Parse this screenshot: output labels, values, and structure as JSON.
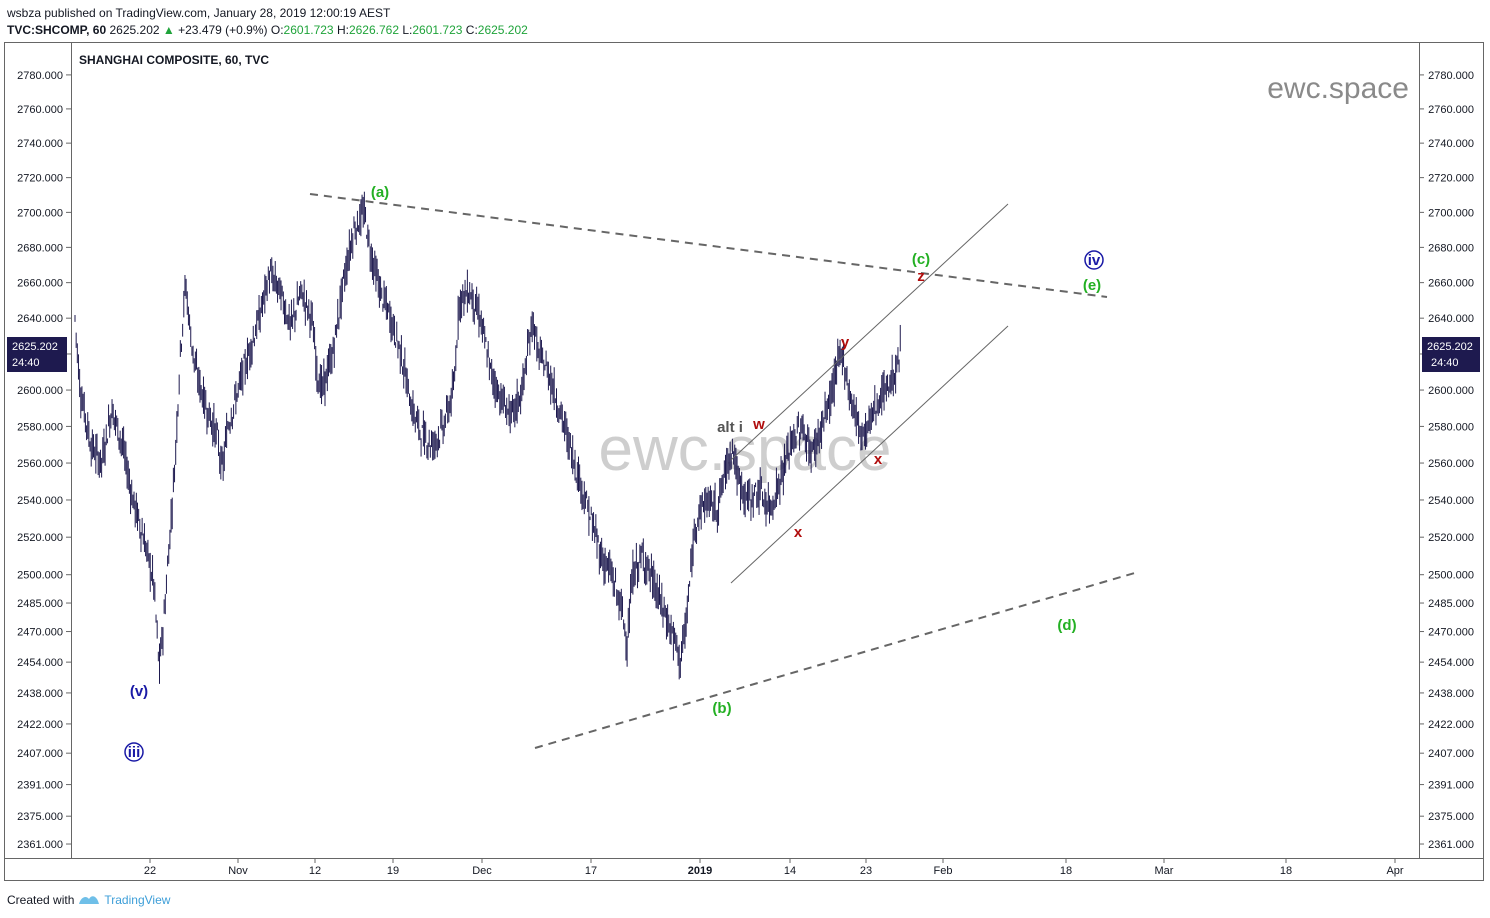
{
  "header": {
    "publisher_line": "wsbza published on TradingView.com, January 28, 2019 12:00:19 AEST",
    "symbol": "TVC:SHCOMP, 60",
    "last": "2625.202",
    "change_arrow": "▲",
    "change": "+23.479 (+0.9%)",
    "o_label": "O:",
    "o_value": "2601.723",
    "h_label": "H:",
    "h_value": "2626.762",
    "l_label": "L:",
    "l_value": "2601.723",
    "c_label": "C:",
    "c_value": "2625.202"
  },
  "chart_title": "SHANGHAI COMPOSITE, 60, TVC",
  "watermark_small": "ewc.space",
  "watermark_large": "ewc.space",
  "price_badge": {
    "price": "2625.202",
    "countdown": "24:40",
    "color": "#1e1a4f"
  },
  "footer": {
    "created_with": "Created with",
    "brand": "TradingView"
  },
  "colors": {
    "green_label": "#23b023",
    "red_label": "#b00d0d",
    "blue_label": "#1a1aa6",
    "gray_label": "#555555",
    "candle": "#1e1a4f",
    "trendline": "#666666"
  },
  "chart_data": {
    "type": "candlestick",
    "title": "SHANGHAI COMPOSITE, 60, TVC",
    "y_ticks": [
      "2780.000",
      "2760.000",
      "2740.000",
      "2720.000",
      "2700.000",
      "2680.000",
      "2660.000",
      "2640.000",
      "2620.000",
      "2600.000",
      "2580.000",
      "2560.000",
      "2540.000",
      "2520.000",
      "2500.000",
      "2485.000",
      "2470.000",
      "2454.000",
      "2438.000",
      "2422.000",
      "2407.000",
      "2391.000",
      "2375.000",
      "2361.000"
    ],
    "y_scale": "log",
    "ylim": [
      2355,
      2790
    ],
    "x_ticks": [
      {
        "label": "22",
        "bold": false
      },
      {
        "label": "Nov",
        "bold": false
      },
      {
        "label": "12",
        "bold": false
      },
      {
        "label": "19",
        "bold": false
      },
      {
        "label": "Dec",
        "bold": false
      },
      {
        "label": "17",
        "bold": false
      },
      {
        "label": "2019",
        "bold": true
      },
      {
        "label": "14",
        "bold": false
      },
      {
        "label": "23",
        "bold": false
      },
      {
        "label": "Feb",
        "bold": false
      },
      {
        "label": "18",
        "bold": false
      },
      {
        "label": "Mar",
        "bold": false
      },
      {
        "label": "18",
        "bold": false
      },
      {
        "label": "Apr",
        "bold": false
      }
    ],
    "price_path": [
      [
        0,
        2640
      ],
      [
        1,
        2600
      ],
      [
        3,
        2570
      ],
      [
        5,
        2560
      ],
      [
        7,
        2590
      ],
      [
        9,
        2570
      ],
      [
        11,
        2540
      ],
      [
        13,
        2520
      ],
      [
        15,
        2495
      ],
      [
        16,
        2450
      ],
      [
        17,
        2480
      ],
      [
        18,
        2520
      ],
      [
        19,
        2560
      ],
      [
        20,
        2620
      ],
      [
        21,
        2660
      ],
      [
        22,
        2630
      ],
      [
        23,
        2610
      ],
      [
        25,
        2590
      ],
      [
        27,
        2575
      ],
      [
        28,
        2555
      ],
      [
        29,
        2580
      ],
      [
        31,
        2600
      ],
      [
        33,
        2620
      ],
      [
        35,
        2640
      ],
      [
        37,
        2665
      ],
      [
        39,
        2655
      ],
      [
        41,
        2635
      ],
      [
        43,
        2655
      ],
      [
        45,
        2640
      ],
      [
        46,
        2610
      ],
      [
        47,
        2600
      ],
      [
        49,
        2620
      ],
      [
        51,
        2660
      ],
      [
        53,
        2690
      ],
      [
        55,
        2700
      ],
      [
        56,
        2680
      ],
      [
        58,
        2655
      ],
      [
        60,
        2640
      ],
      [
        62,
        2620
      ],
      [
        64,
        2590
      ],
      [
        66,
        2575
      ],
      [
        68,
        2570
      ],
      [
        70,
        2580
      ],
      [
        72,
        2600
      ],
      [
        73,
        2650
      ],
      [
        75,
        2655
      ],
      [
        77,
        2640
      ],
      [
        79,
        2610
      ],
      [
        81,
        2595
      ],
      [
        83,
        2585
      ],
      [
        85,
        2600
      ],
      [
        87,
        2640
      ],
      [
        88,
        2620
      ],
      [
        90,
        2610
      ],
      [
        92,
        2590
      ],
      [
        94,
        2570
      ],
      [
        96,
        2550
      ],
      [
        98,
        2530
      ],
      [
        100,
        2510
      ],
      [
        102,
        2500
      ],
      [
        104,
        2480
      ],
      [
        105,
        2465
      ],
      [
        106,
        2500
      ],
      [
        108,
        2510
      ],
      [
        110,
        2495
      ],
      [
        112,
        2480
      ],
      [
        114,
        2465
      ],
      [
        115,
        2455
      ],
      [
        116,
        2470
      ],
      [
        117,
        2500
      ],
      [
        118,
        2530
      ],
      [
        120,
        2540
      ],
      [
        122,
        2535
      ],
      [
        124,
        2560
      ],
      [
        125,
        2570
      ],
      [
        126,
        2550
      ],
      [
        128,
        2540
      ],
      [
        130,
        2545
      ],
      [
        132,
        2535
      ],
      [
        134,
        2550
      ],
      [
        136,
        2570
      ],
      [
        138,
        2580
      ],
      [
        140,
        2565
      ],
      [
        142,
        2580
      ],
      [
        144,
        2600
      ],
      [
        145,
        2615
      ],
      [
        146,
        2620
      ],
      [
        147,
        2600
      ],
      [
        149,
        2580
      ],
      [
        150,
        2575
      ],
      [
        152,
        2590
      ],
      [
        154,
        2600
      ],
      [
        156,
        2610
      ],
      [
        157,
        2625
      ]
    ],
    "wave_labels": [
      {
        "text": "(a)",
        "color": "green",
        "price": 2704
      },
      {
        "text": "(b)",
        "color": "green",
        "price": 2438
      },
      {
        "text": "(c)",
        "color": "green",
        "price": 2675
      },
      {
        "text": "(d)",
        "color": "green",
        "price": 2472
      },
      {
        "text": "(e)",
        "color": "green",
        "price": 2659
      },
      {
        "text": "(v)",
        "color": "blue",
        "price": 2441
      },
      {
        "text": "iii",
        "color": "blue",
        "price": 2410,
        "circled": true
      },
      {
        "text": "iv",
        "color": "blue",
        "price": 2675,
        "circled": true
      },
      {
        "text": "w",
        "color": "red",
        "price": 2582
      },
      {
        "text": "x",
        "color": "red",
        "price": 2525
      },
      {
        "text": "y",
        "color": "red",
        "price": 2630
      },
      {
        "text": "x",
        "color": "red",
        "price": 2563
      },
      {
        "text": "z",
        "color": "red",
        "price": 2662
      },
      {
        "text": "alt i",
        "color": "gray",
        "price": 2580
      }
    ]
  }
}
